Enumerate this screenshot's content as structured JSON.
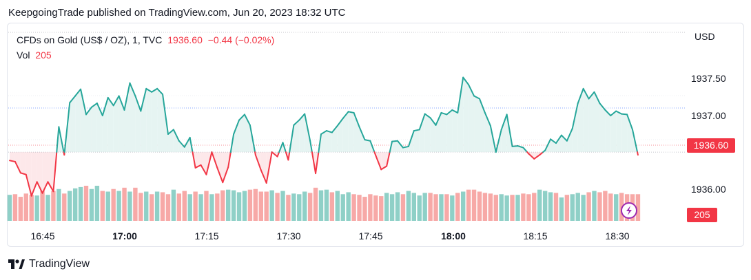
{
  "header": {
    "publisher_line": "KeepgoingTrade published on TradingView.com, Jun 20, 2023 18:32 UTC"
  },
  "legend": {
    "symbol": "CFDs on Gold (US$ / OZ), 1, TVC",
    "last": "1936.60",
    "change": "−0.44 (−0.02%)",
    "vol_label": "Vol",
    "vol_value": "205"
  },
  "axis": {
    "currency": "USD",
    "price_ticks": [
      "1937.50",
      "1937.00",
      "1936.00"
    ],
    "time_ticks": [
      {
        "label": "16:45",
        "bold": false
      },
      {
        "label": "17:00",
        "bold": true
      },
      {
        "label": "17:15",
        "bold": false
      },
      {
        "label": "17:30",
        "bold": false
      },
      {
        "label": "17:45",
        "bold": false
      },
      {
        "label": "18:00",
        "bold": true
      },
      {
        "label": "18:15",
        "bold": false
      },
      {
        "label": "18:30",
        "bold": false
      }
    ],
    "last_price_badge": "1936.60",
    "volume_badge": "205"
  },
  "footer": {
    "brand": "TradingView"
  },
  "colors": {
    "up": "#26a69a",
    "down": "#f23645",
    "up_fill": "#e6f4f2",
    "down_fill": "#fde8ea",
    "vol_up": "#8fd0c7",
    "vol_down": "#f7a9a7",
    "grid": "#e0e3eb",
    "lightning": "#9c27b0"
  },
  "chart_data": {
    "type": "area",
    "title": "CFDs on Gold (US$ / OZ), 1, TVC",
    "ylabel": "USD",
    "ylim": [
      1935.72,
      1938.55
    ],
    "baseline": 1936.65,
    "x_start": "16:40",
    "x_interval_minutes": 1,
    "x_tick_labels": [
      "16:45",
      "17:00",
      "17:15",
      "17:30",
      "17:45",
      "18:00",
      "18:15",
      "18:30"
    ],
    "series": [
      {
        "name": "Price",
        "values": [
          1936.5,
          1936.48,
          1936.28,
          1936.25,
          1935.87,
          1936.12,
          1935.92,
          1936.12,
          1935.95,
          1937.1,
          1936.6,
          1937.53,
          1937.65,
          1937.77,
          1937.32,
          1937.45,
          1937.52,
          1937.3,
          1937.62,
          1937.48,
          1937.65,
          1937.4,
          1937.88,
          1937.65,
          1937.38,
          1937.78,
          1937.72,
          1937.78,
          1937.68,
          1936.97,
          1937.05,
          1936.85,
          1936.74,
          1936.91,
          1936.37,
          1936.42,
          1936.25,
          1936.65,
          1936.37,
          1936.11,
          1936.38,
          1936.97,
          1937.22,
          1937.32,
          1937.13,
          1936.6,
          1936.33,
          1936.1,
          1936.65,
          1936.57,
          1936.82,
          1936.51,
          1937.13,
          1937.22,
          1937.33,
          1936.85,
          1936.27,
          1936.97,
          1937.03,
          1937.0,
          1937.12,
          1937.25,
          1937.37,
          1937.35,
          1937.1,
          1936.87,
          1936.85,
          1936.59,
          1936.34,
          1936.4,
          1936.84,
          1936.85,
          1936.73,
          1936.75,
          1937.03,
          1937.05,
          1937.33,
          1937.26,
          1937.13,
          1937.35,
          1937.32,
          1937.4,
          1937.35,
          1937.98,
          1937.85,
          1937.65,
          1937.6,
          1937.35,
          1937.12,
          1936.65,
          1937.05,
          1937.32,
          1936.75,
          1936.76,
          1936.73,
          1936.62,
          1936.53,
          1936.6,
          1936.68,
          1936.88,
          1936.81,
          1936.95,
          1936.85,
          1937.07,
          1937.52,
          1937.78,
          1937.6,
          1937.72,
          1937.52,
          1937.4,
          1937.3,
          1937.38,
          1937.33,
          1937.32,
          1937.05,
          1936.6
        ]
      },
      {
        "name": "Vol",
        "values": [
          200,
          205,
          185,
          210,
          200,
          195,
          235,
          200,
          230,
          245,
          210,
          230,
          250,
          260,
          270,
          245,
          270,
          230,
          225,
          245,
          230,
          255,
          225,
          255,
          215,
          225,
          205,
          225,
          220,
          205,
          240,
          210,
          230,
          205,
          225,
          205,
          230,
          205,
          210,
          235,
          240,
          235,
          220,
          230,
          240,
          245,
          225,
          225,
          235,
          215,
          230,
          200,
          210,
          205,
          225,
          215,
          255,
          235,
          240,
          220,
          230,
          205,
          220,
          205,
          200,
          185,
          205,
          195,
          190,
          215,
          205,
          220,
          205,
          230,
          215,
          195,
          215,
          215,
          205,
          205,
          205,
          195,
          215,
          225,
          240,
          240,
          225,
          215,
          210,
          200,
          205,
          195,
          200,
          200,
          210,
          205,
          215,
          240,
          230,
          220,
          215,
          180,
          200,
          205,
          215,
          200,
          220,
          230,
          220,
          230,
          210,
          205,
          215,
          205,
          205,
          205
        ]
      }
    ]
  }
}
